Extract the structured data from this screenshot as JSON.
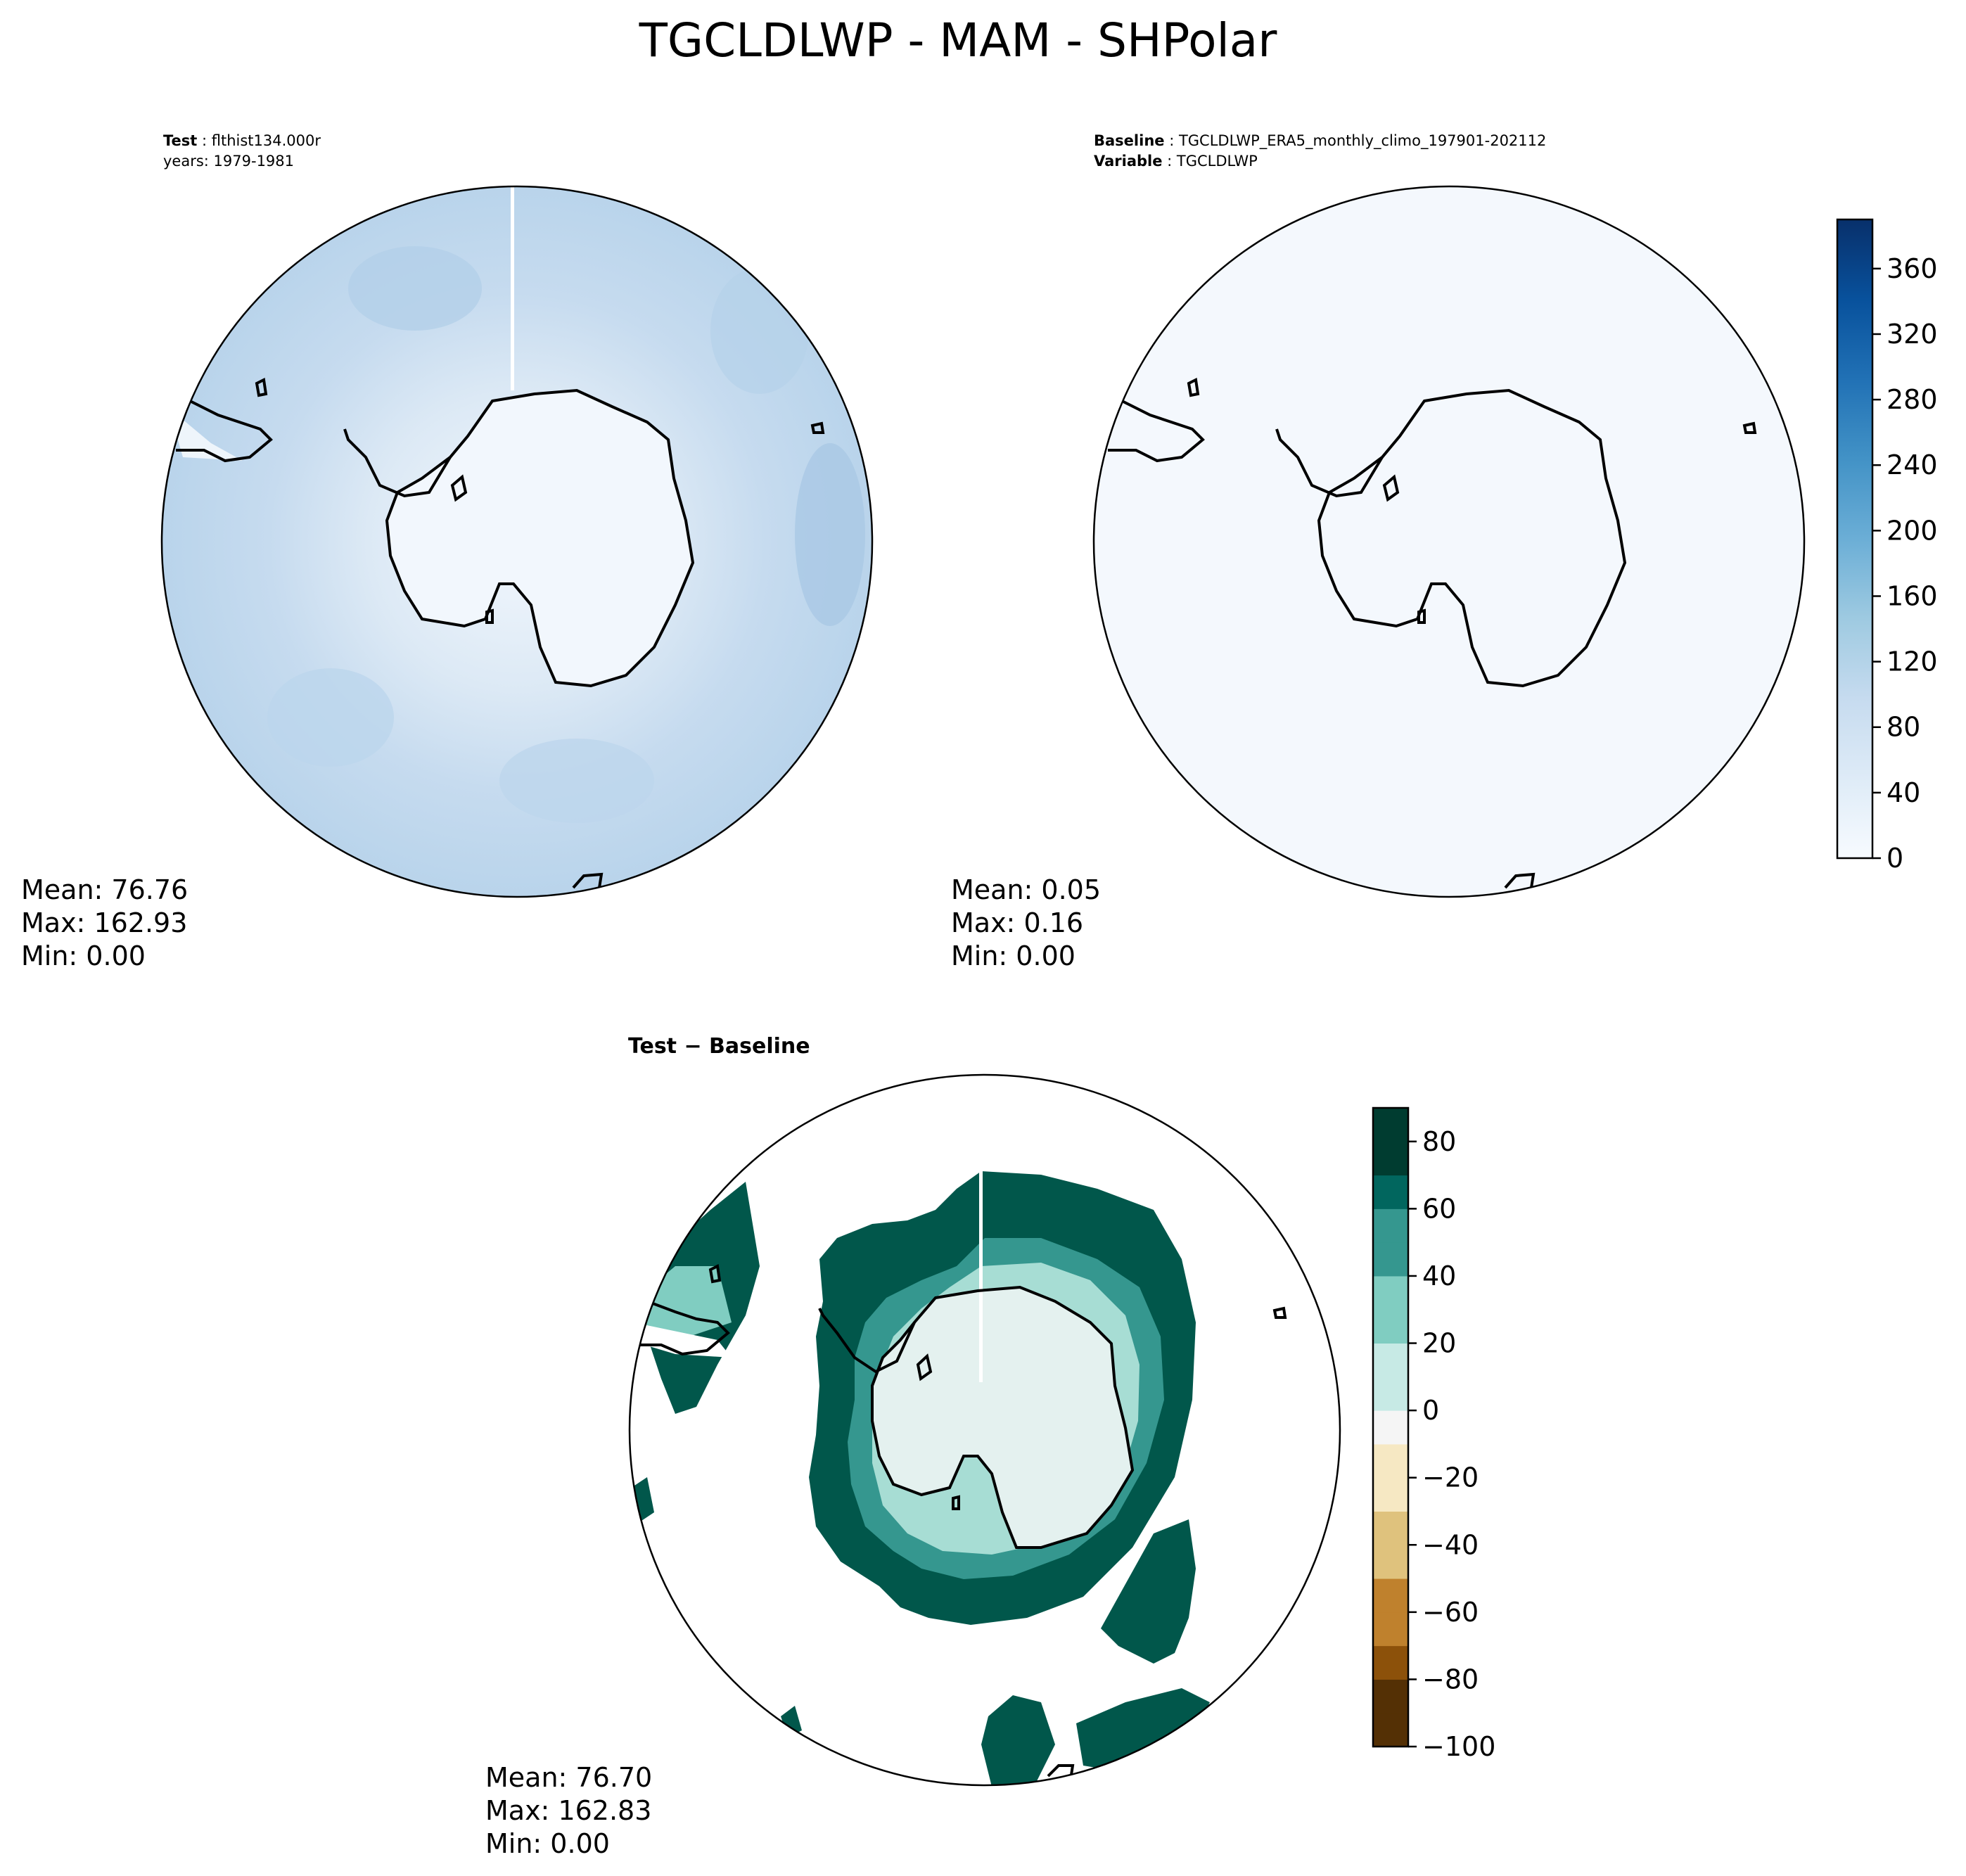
{
  "figure": {
    "title": "TGCLDLWP - MAM - SHPolar"
  },
  "panels": {
    "test": {
      "header_key": "Test",
      "header_value": "flthist134.000r",
      "header_line2": "years: 1979-1981",
      "stats": {
        "mean": "Mean: 76.76",
        "max": "Max: 162.93",
        "min": "Min:  0.00"
      }
    },
    "baseline": {
      "header_key": "Baseline",
      "header_value": "TGCLDLWP_ERA5_monthly_climo_197901-202112",
      "header_key2": "Variable",
      "header_value2": "TGCLDLWP",
      "stats": {
        "mean": "Mean:  0.05",
        "max": "Max:  0.16",
        "min": "Min:  0.00"
      }
    },
    "diff": {
      "title": "Test − Baseline",
      "stats": {
        "mean": "Mean: 76.70",
        "max": "Max: 162.83",
        "min": "Min:  0.00"
      }
    }
  },
  "colorbars": {
    "blues": {
      "ticks": [
        "0",
        "40",
        "80",
        "120",
        "160",
        "200",
        "240",
        "280",
        "320",
        "360"
      ],
      "range": [
        0,
        390
      ],
      "colormap": [
        "#f7fbff",
        "#deebf7",
        "#c6dbef",
        "#9ecae1",
        "#6baed6",
        "#4292c6",
        "#2171b5",
        "#08519c",
        "#08306b"
      ]
    },
    "brbg": {
      "ticks": [
        "80",
        "60",
        "40",
        "20",
        "0",
        "−20",
        "−40",
        "−60",
        "−80",
        "−100"
      ],
      "range": [
        -100,
        90
      ],
      "colormap": [
        "#543005",
        "#8c510a",
        "#bf812d",
        "#dfc27d",
        "#f6e8c3",
        "#f5f5f5",
        "#c7eae5",
        "#80cdc1",
        "#35978f",
        "#01665e",
        "#003c30"
      ]
    }
  },
  "map_colors": {
    "test_ocean": "#c5daee",
    "test_ice": "#f2f7fd",
    "baseline_fill": "#f4f8fd",
    "diff_dark": "#01574b",
    "diff_light": "#e4f1ef"
  }
}
